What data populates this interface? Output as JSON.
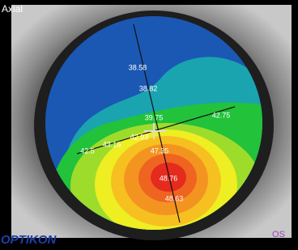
{
  "header": {
    "title": "Axial"
  },
  "map_labels": [
    "38.58",
    "38.82",
    "39.75",
    "42.75",
    "42.5",
    "43.16",
    "42.93",
    "47.35",
    "48.76",
    "48.63"
  ],
  "footer": {
    "logo": "OPTIKON",
    "eye": "OS"
  }
}
